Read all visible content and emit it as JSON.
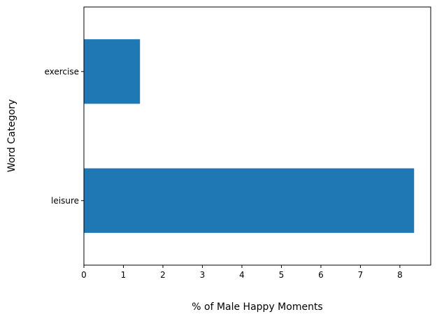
{
  "chart_data": {
    "type": "bar",
    "orientation": "horizontal",
    "categories": [
      "exercise",
      "leisure"
    ],
    "values": [
      1.42,
      8.36
    ],
    "xlabel": "% of Male Happy Moments",
    "ylabel": "Word Category",
    "xlim": [
      0,
      8.78
    ],
    "xticks": [
      "0",
      "1",
      "2",
      "3",
      "4",
      "5",
      "6",
      "7",
      "8"
    ],
    "grid": false,
    "legend": "none",
    "bar_color": "#1f77b4"
  }
}
